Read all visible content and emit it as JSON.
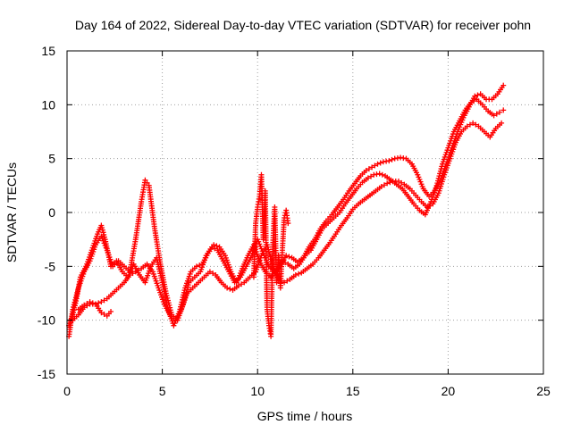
{
  "chart_data": {
    "type": "scatter",
    "title": "Day 164 of 2022, Sidereal Day-to-day VTEC variation (SDTVAR) for receiver pohn",
    "xlabel": "GPS time / hours",
    "ylabel": "SDTVAR / TECUs",
    "xlim": [
      0,
      25
    ],
    "ylim": [
      -15,
      15
    ],
    "xticks": [
      0,
      5,
      10,
      15,
      20,
      25
    ],
    "yticks": [
      -15,
      -10,
      -5,
      0,
      5,
      10,
      15
    ],
    "grid": true,
    "marker": "plus",
    "color": "#ff0000",
    "series": [
      {
        "name": "track-a",
        "x": [
          0.1,
          0.3,
          0.5,
          0.7,
          1.0,
          1.3,
          1.6,
          1.8,
          2.0,
          2.3,
          2.6,
          2.9,
          3.2,
          3.5,
          3.8,
          4.1,
          4.4,
          4.7,
          5.0,
          5.3,
          5.6,
          5.9,
          6.2,
          6.5,
          6.8,
          7.1,
          7.4,
          7.7,
          8.0,
          8.3,
          8.6,
          8.9,
          9.2,
          9.5,
          9.8,
          10.1,
          10.4,
          10.7,
          11.0,
          11.3,
          11.6,
          11.9,
          12.2,
          12.5,
          12.8,
          13.1,
          13.4,
          13.7,
          14.0,
          14.3,
          14.6,
          14.9,
          15.2,
          15.5,
          15.8,
          16.1,
          16.4,
          16.7,
          17.0,
          17.3,
          17.6,
          17.9,
          18.2,
          18.5,
          18.8,
          19.1,
          19.4,
          19.7,
          20.0,
          20.3,
          20.6,
          20.9,
          21.2,
          21.5,
          21.8,
          22.1,
          22.4,
          22.7,
          22.9
        ],
        "y": [
          -10.5,
          -9.5,
          -8,
          -6,
          -5,
          -3.5,
          -2,
          -1.2,
          -2.5,
          -5,
          -4.5,
          -5.5,
          -6,
          -4.8,
          -5.8,
          -6.5,
          -5,
          -4.2,
          -6.5,
          -9,
          -10.5,
          -9.2,
          -7,
          -5.5,
          -5,
          -4.8,
          -3.8,
          -3,
          -3.2,
          -4,
          -5.5,
          -6.5,
          -5.2,
          -4,
          -3,
          -4.5,
          -5.5,
          -6,
          -5.5,
          -4.5,
          -4.8,
          -5.2,
          -4.8,
          -4,
          -3.5,
          -2.5,
          -1.5,
          -1,
          -0.5,
          0,
          0.8,
          1.5,
          2.2,
          2.8,
          3.2,
          3.5,
          3.6,
          3.4,
          3.0,
          2.6,
          2.2,
          1.5,
          0.8,
          0.2,
          -0.2,
          1.0,
          2.5,
          4.5,
          6,
          7.5,
          8.5,
          9.5,
          10.2,
          10.5,
          10.0,
          9.4,
          9.0,
          9.3,
          9.5
        ]
      },
      {
        "name": "track-b",
        "x": [
          0.1,
          0.3,
          0.6,
          0.9,
          1.2,
          1.5,
          1.8,
          2.1,
          2.4,
          2.7,
          3.0,
          3.3,
          3.6,
          3.9,
          4.1,
          4.3,
          4.6,
          4.9,
          5.2,
          5.5,
          5.8,
          6.1,
          6.4,
          6.7,
          7.0,
          7.3,
          7.6,
          7.9,
          8.2,
          8.5,
          8.8,
          9.1,
          9.4,
          9.7,
          10.0,
          10.3,
          10.6,
          10.9,
          11.2,
          11.5,
          11.8,
          12.1,
          12.4,
          12.7,
          13.0,
          13.3,
          13.6,
          13.9,
          14.2,
          14.5,
          14.8,
          15.1,
          15.4,
          15.7,
          16.0,
          16.3,
          16.6,
          16.9,
          17.2,
          17.5,
          17.8,
          18.1,
          18.4,
          18.7,
          19.0,
          19.3,
          19.6,
          19.9,
          20.2,
          20.5,
          20.8,
          21.1,
          21.4,
          21.7,
          22.0,
          22.3,
          22.6,
          22.9
        ],
        "y": [
          -11.5,
          -9,
          -7,
          -5.5,
          -4.5,
          -3,
          -2.2,
          -3.5,
          -5,
          -4.5,
          -5,
          -5.5,
          -2.5,
          1.0,
          3.0,
          2.5,
          -1.5,
          -4.8,
          -7.5,
          -9.5,
          -10,
          -8.5,
          -6.5,
          -6,
          -5.5,
          -4,
          -3.2,
          -3.5,
          -4.5,
          -5.5,
          -6.5,
          -6,
          -5,
          -4,
          -2.5,
          -3.8,
          -5,
          -5.5,
          -5,
          -4,
          -4.2,
          -4.6,
          -4.2,
          -3.2,
          -2.5,
          -1.5,
          -0.8,
          -0.2,
          0.5,
          1.2,
          2.0,
          2.7,
          3.4,
          3.9,
          4.2,
          4.5,
          4.7,
          4.8,
          5.0,
          5.1,
          5.0,
          4.5,
          3.5,
          2.2,
          1.5,
          2.0,
          3.0,
          4.5,
          6,
          7.5,
          8.8,
          9.8,
          10.8,
          11.0,
          10.5,
          10.5,
          11.0,
          11.8
        ]
      },
      {
        "name": "track-c",
        "x": [
          0.3,
          0.6,
          0.9,
          1.2,
          1.5,
          1.8,
          2.1,
          2.4,
          2.7,
          3.0,
          3.3,
          3.6,
          3.9,
          4.2,
          4.5,
          4.8,
          5.1,
          5.4,
          5.7,
          6.0,
          6.3,
          6.6,
          6.9,
          7.2,
          7.5,
          7.8,
          8.1,
          8.4,
          8.7,
          9.0,
          9.3,
          9.6,
          9.9,
          10.2,
          10.5,
          10.8,
          11.1,
          11.4,
          11.7,
          12.0,
          12.3,
          12.6,
          12.9,
          13.2,
          13.5,
          13.8,
          14.1,
          14.4,
          14.7,
          15.0,
          15.3,
          15.6,
          15.9,
          16.2,
          16.5,
          16.8,
          17.1,
          17.4,
          17.7,
          18.0,
          18.3,
          18.6,
          18.9,
          19.2,
          19.5,
          19.8,
          20.1,
          20.4,
          20.7,
          21.0,
          21.3,
          21.6,
          21.9,
          22.2,
          22.5,
          22.8
        ],
        "y": [
          -10,
          -9.5,
          -8.8,
          -8.5,
          -8.5,
          -8.3,
          -8,
          -7.5,
          -7,
          -6.5,
          -5.8,
          -5.5,
          -5.2,
          -4.8,
          -5.5,
          -7,
          -8.5,
          -9.5,
          -10,
          -9,
          -7.5,
          -7.0,
          -6.5,
          -6.0,
          -5.5,
          -5.8,
          -6.5,
          -7,
          -7.2,
          -6.8,
          -6.5,
          -6,
          -5.5,
          -4,
          -3,
          -5,
          -6.2,
          -6.5,
          -6.2,
          -5.8,
          -5.6,
          -5.2,
          -4.8,
          -4.2,
          -3.5,
          -2.8,
          -2.0,
          -1.2,
          -0.5,
          0.3,
          0.8,
          1.2,
          1.6,
          2.0,
          2.4,
          2.7,
          2.9,
          2.9,
          2.6,
          2.2,
          1.6,
          1.0,
          0.5,
          0.8,
          1.8,
          3.5,
          5.0,
          6.5,
          7.5,
          8.0,
          8.3,
          8.0,
          7.5,
          7.0,
          7.8,
          8.3
        ]
      },
      {
        "name": "track-d",
        "x": [
          0.6,
          0.9,
          1.2,
          1.5,
          1.8,
          2.1,
          2.3
        ],
        "y": [
          -9,
          -8.6,
          -8.3,
          -8.5,
          -9.3,
          -9.6,
          -9.2
        ]
      },
      {
        "name": "track-e",
        "x": [
          9.8,
          9.9,
          10.0,
          10.1,
          10.2,
          10.3,
          10.4,
          10.5,
          10.6,
          10.7,
          10.8,
          10.9,
          11.0,
          11.1,
          11.2,
          11.3,
          11.4,
          11.5,
          11.6
        ],
        "y": [
          -6,
          -1,
          0.5,
          1.5,
          3.5,
          -2.5,
          2.0,
          -9.0,
          -10.5,
          -11.5,
          -3.0,
          0.5,
          -6.5,
          -4.0,
          -7.0,
          -3.5,
          -0.5,
          0.2,
          -1.0
        ]
      }
    ]
  }
}
